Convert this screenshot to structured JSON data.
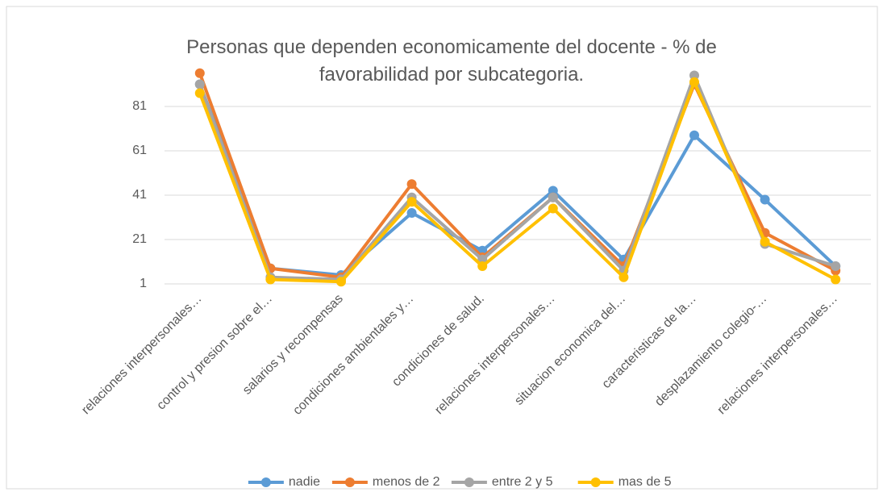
{
  "chart_data": {
    "type": "line",
    "title": "Personas que dependen economicamente del docente  - % de favorabilidad por subcategoria.",
    "categories": [
      "relaciones interpersonales…",
      "control y presion sobre el…",
      "salarios y recompensas",
      "condiciones ambientales y…",
      "condiciones de salud.",
      "relaciones interpersonales…",
      "situacion economica del…",
      "caracteristicas de la…",
      "desplazamiento colegio-…",
      "relaciones interpersonales…"
    ],
    "series": [
      {
        "name": "nadie",
        "color": "#5b9bd5",
        "values": [
          91,
          8,
          5,
          33,
          16,
          43,
          12,
          68,
          39,
          9
        ]
      },
      {
        "name": "menos de 2",
        "color": "#ed7d31",
        "values": [
          96,
          8,
          4,
          46,
          13,
          40,
          9,
          91,
          24,
          7
        ]
      },
      {
        "name": "entre 2 y 5",
        "color": "#a5a5a5",
        "values": [
          91,
          4,
          3,
          40,
          12,
          40,
          7,
          95,
          19,
          9
        ]
      },
      {
        "name": "mas de 5",
        "color": "#ffc000",
        "values": [
          87,
          3,
          2,
          38,
          9,
          35,
          4,
          92,
          20,
          3
        ]
      }
    ],
    "ylim": [
      1,
      100
    ],
    "yticks": [
      1,
      21,
      41,
      61,
      81
    ],
    "grid": true,
    "legend": "bottom"
  }
}
